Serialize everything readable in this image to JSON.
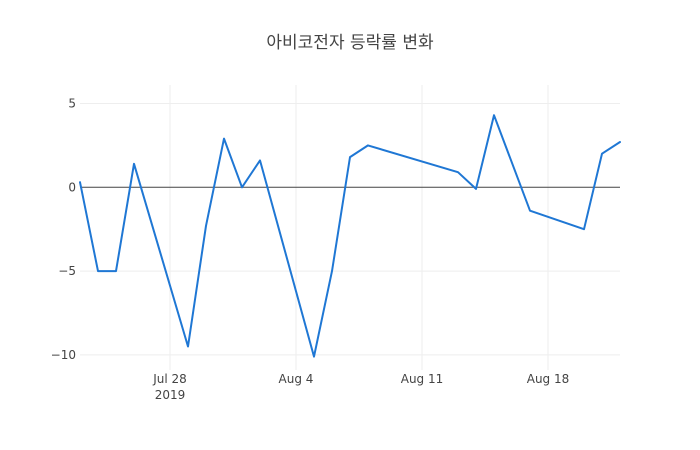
{
  "chart_data": {
    "type": "line",
    "title": "아비코전자 등락률 변화",
    "xlabel": "",
    "ylabel": "",
    "x_range": [
      "2019-07-23",
      "2019-08-22"
    ],
    "ylim": [
      -10.9,
      6.1
    ],
    "y_ticks": [
      5,
      0,
      -5,
      -10
    ],
    "y_tick_labels": [
      "5",
      "0",
      "−5",
      "−10"
    ],
    "x_ticks": [
      {
        "date": "2019-07-28",
        "label": "Jul 28",
        "sublabel": "2019"
      },
      {
        "date": "2019-08-04",
        "label": "Aug 4",
        "sublabel": ""
      },
      {
        "date": "2019-08-11",
        "label": "Aug 11",
        "sublabel": ""
      },
      {
        "date": "2019-08-18",
        "label": "Aug 18",
        "sublabel": ""
      }
    ],
    "grid": true,
    "zero_line": true,
    "series": [
      {
        "color": "#1f77d4",
        "x": [
          "2019-07-23",
          "2019-07-24",
          "2019-07-25",
          "2019-07-26",
          "2019-07-29",
          "2019-07-30",
          "2019-07-31",
          "2019-08-01",
          "2019-08-02",
          "2019-08-05",
          "2019-08-06",
          "2019-08-07",
          "2019-08-08",
          "2019-08-13",
          "2019-08-14",
          "2019-08-15",
          "2019-08-17",
          "2019-08-20",
          "2019-08-21",
          "2019-08-22"
        ],
        "y": [
          0.3,
          -5.0,
          -5.0,
          1.4,
          -9.5,
          -2.3,
          2.9,
          0.0,
          1.6,
          -10.1,
          -5.0,
          1.8,
          2.5,
          0.9,
          -0.1,
          4.3,
          -1.4,
          -2.5,
          2.0,
          2.7
        ]
      }
    ]
  }
}
